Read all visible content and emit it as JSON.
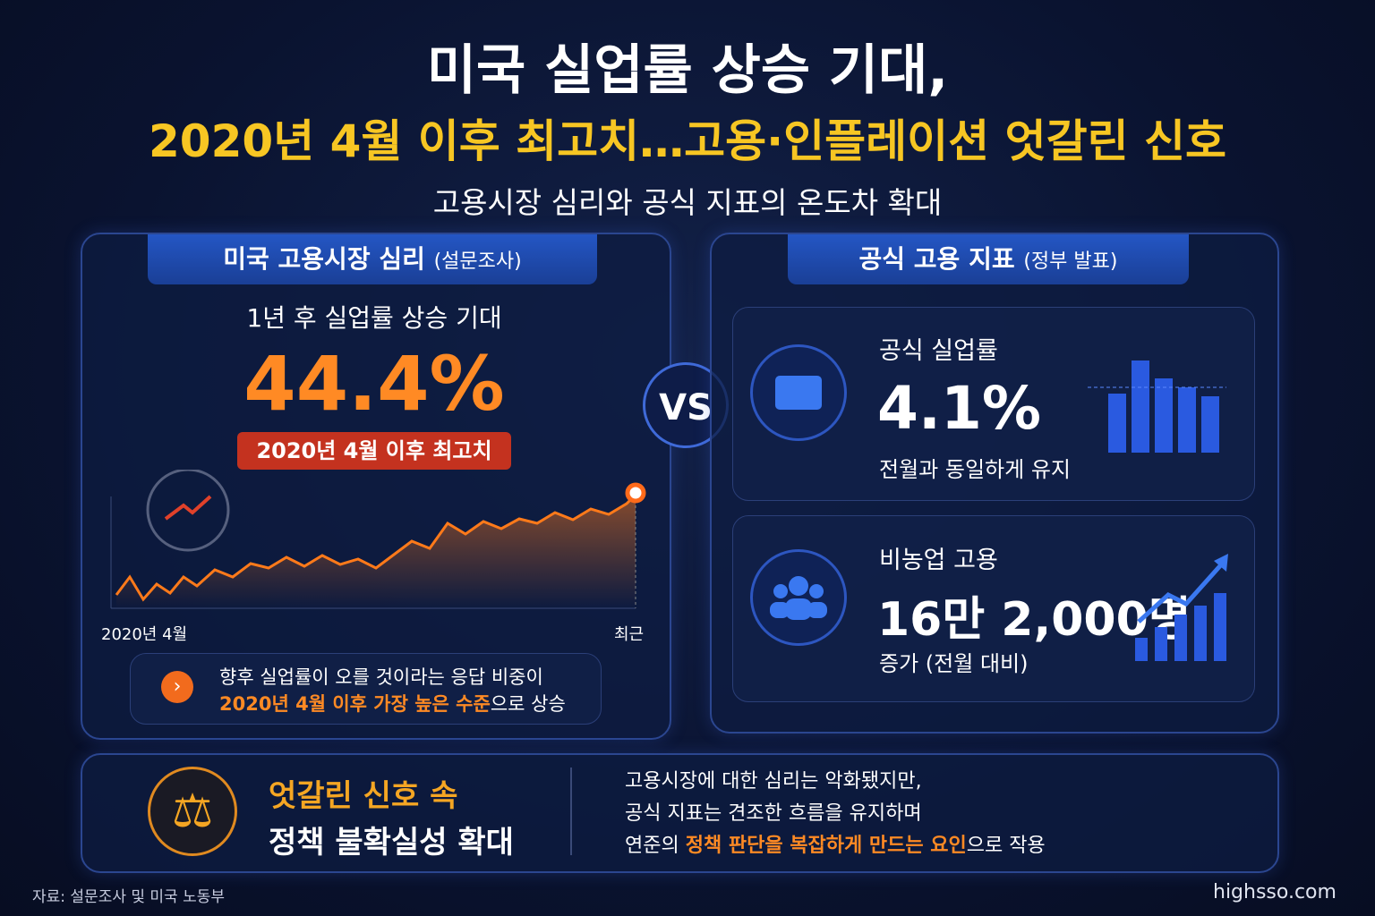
{
  "header": {
    "title_line1": "미국 실업률 상승 기대,",
    "title_line2": "2020년 4월 이후 최고치…고용·인플레이션 엇갈린 신호",
    "subtitle": "고용시장 심리와 공식 지표의 온도차 확대"
  },
  "left_panel": {
    "title": "미국 고용시장 심리",
    "title_note": "(설문조사)",
    "metric_label": "1년 후 실업률 상승 기대",
    "metric_value": "44.4%",
    "badge": "2020년 4월 이후 최고치",
    "chart_start_label": "2020년 4월",
    "chart_end_label": "최근",
    "note_line1": "향후 실업률이 오를 것이라는 응답 비중이",
    "note_highlight": "2020년 4월 이후 가장 높은 수준",
    "note_rest": "으로 상승"
  },
  "vs": "VS",
  "right_panel": {
    "title": "공식 고용 지표",
    "title_note": "(정부 발표)",
    "cards": [
      {
        "label": "공식 실업률",
        "value": "4.1%",
        "detail": "전월과 동일하게 유지"
      },
      {
        "label": "비농업 고용",
        "value": "16만 2,000명",
        "detail": "증가 (전월 대비)"
      }
    ]
  },
  "bottom": {
    "heading_line1": "엇갈린 신호 속",
    "heading_line2": "정책 불확실성 확대",
    "text_line1": "고용시장에 대한 심리는 악화됐지만,",
    "text_line2": "공식 지표는 견조한 흐름을 유지하며",
    "text_line3_start": "연준의 ",
    "text_line3_highlight": "정책 판단을 복잡하게 만드는 요인",
    "text_line3_end": "으로 작용"
  },
  "footer": {
    "source": "자료: 설문조사 및 미국 노동부",
    "site": "highsso.com"
  }
}
